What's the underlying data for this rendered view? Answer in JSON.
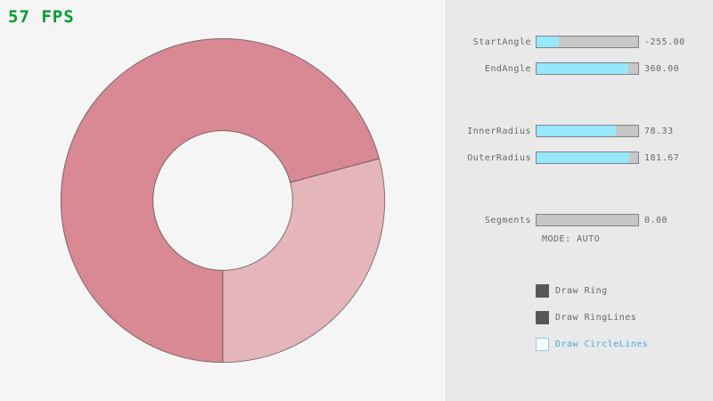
{
  "canvas": {
    "fps_label": "57 FPS"
  },
  "panel": {
    "sliders": [
      {
        "label": "StartAngle",
        "value": "-255.00",
        "fill_pct": 21.7
      },
      {
        "label": "EndAngle",
        "value": "360.00",
        "fill_pct": 90.0
      },
      {
        "label": "InnerRadius",
        "value": "78.33",
        "fill_pct": 78.3
      },
      {
        "label": "OuterRadius",
        "value": "181.67",
        "fill_pct": 90.8
      },
      {
        "label": "Segments",
        "value": "0.00",
        "fill_pct": 0
      }
    ],
    "mode_label": "MODE: AUTO",
    "checkboxes": [
      {
        "label": "Draw Ring",
        "checked": true
      },
      {
        "label": "Draw RingLines",
        "checked": true
      },
      {
        "label": "Draw CircleLines",
        "checked": false
      }
    ]
  },
  "ring": {
    "start_angle": -255.0,
    "end_angle": 360.0,
    "inner_radius": 78.33,
    "outer_radius": 181.67,
    "segments": 0
  },
  "colors": {
    "canvas_bg": "#f5f5f5",
    "panel_bg": "#e9e9e9",
    "fps_green": "#009e2f",
    "slider_fill": "#97e8ff",
    "slider_track": "#c6c6c6",
    "slider_border": "#838383",
    "text_gray": "#686868",
    "checkbox_checked": "#575757",
    "focus_blue": "#4da6d9",
    "ring_dark": "#d98994",
    "ring_light": "#e5b5bc"
  }
}
